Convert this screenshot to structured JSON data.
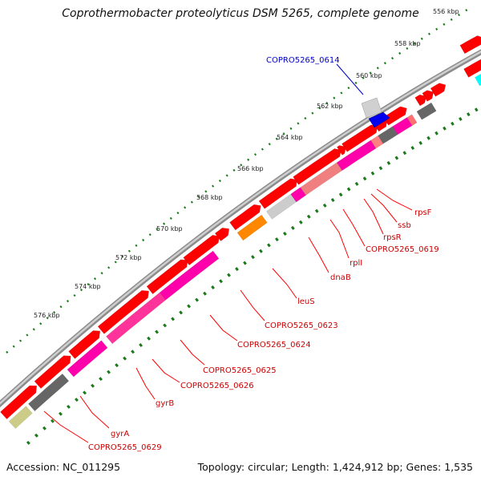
{
  "title": "Coprothermobacter proteolyticus DSM 5265, complete genome",
  "footer": {
    "accession": "Accession: NC_011295",
    "topology": "Topology: circular; Length: 1,424,912 bp; Genes: 1,535"
  },
  "colors": {
    "forward_gene": "#ff0000",
    "backbone": "#8a8a8a",
    "tick": "#1a7a1a",
    "label_line": "#ff0000",
    "highlight_label": "#0000cc"
  },
  "scale_labels": [
    "556 kbp",
    "558 kbp",
    "560 kbp",
    "562 kbp",
    "564 kbp",
    "566 kbp",
    "568 kbp",
    "570 kbp",
    "572 kbp",
    "574 kbp",
    "576 kbp"
  ],
  "gene_labels": [
    "COPRO5265_0614",
    "rpsF",
    "ssb",
    "rpsR",
    "COPRO5265_0619",
    "rplI",
    "dnaB",
    "leuS",
    "COPRO5265_0623",
    "COPRO5265_0624",
    "COPRO5265_0625",
    "COPRO5265_0626",
    "gyrB",
    "gyrA",
    "COPRO5265_0629"
  ]
}
